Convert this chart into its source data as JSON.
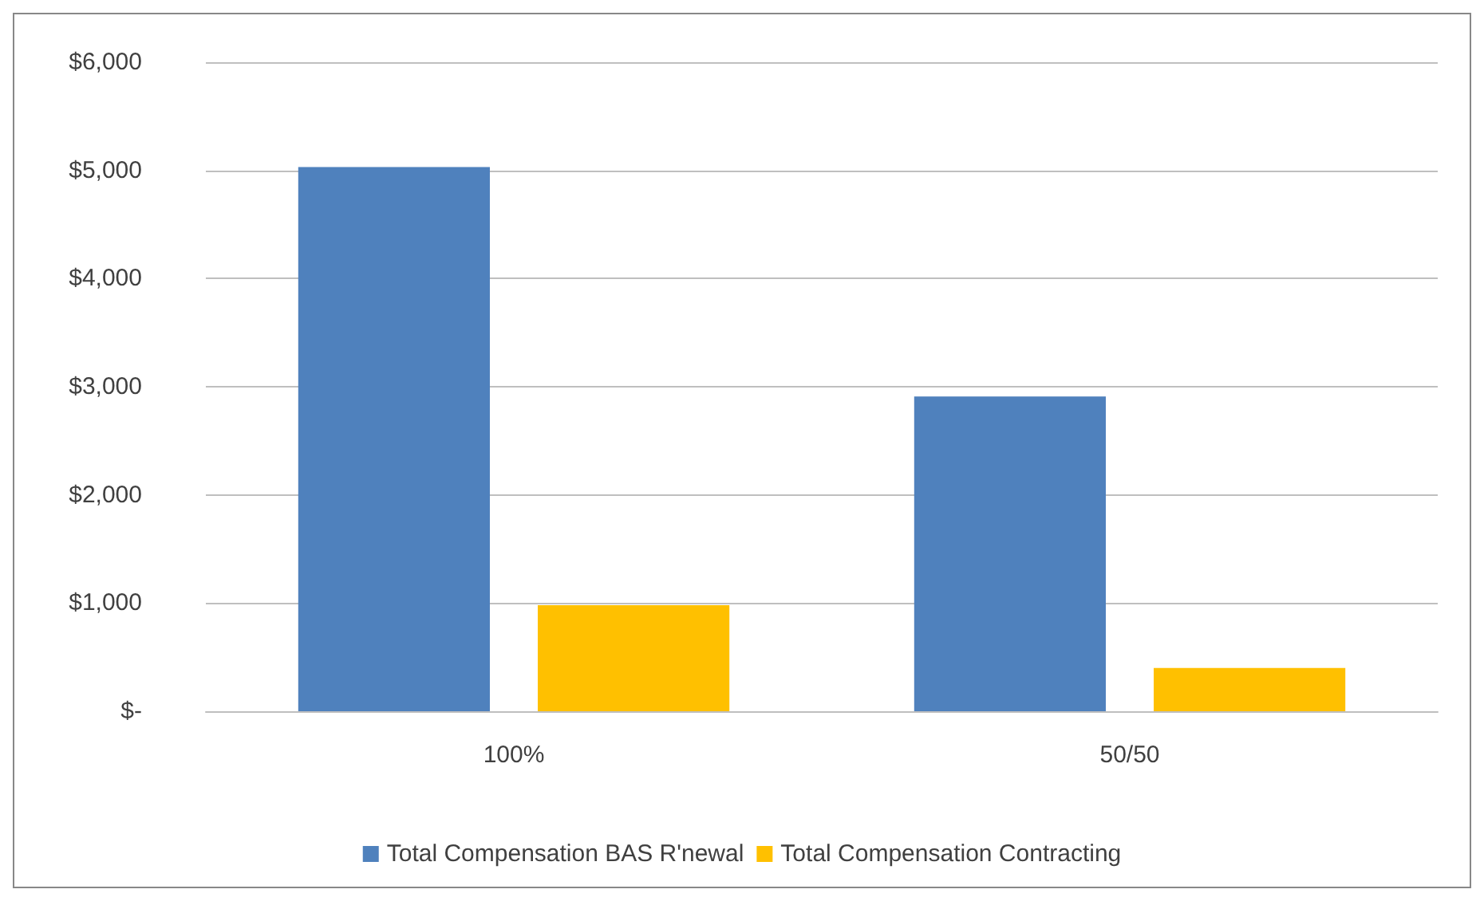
{
  "chart_data": {
    "type": "bar",
    "categories": [
      "100%",
      "50/50"
    ],
    "series": [
      {
        "name": "Total Compensation BAS R'newal",
        "color": "#4f81bd",
        "values": [
          5030,
          2910
        ]
      },
      {
        "name": "Total Compensation Contracting",
        "color": "#ffc000",
        "values": [
          980,
          400
        ]
      }
    ],
    "ylim": [
      0,
      6000
    ],
    "yticks": [
      {
        "value": 0,
        "label": "$-"
      },
      {
        "value": 1000,
        "label": "$1,000"
      },
      {
        "value": 2000,
        "label": "$2,000"
      },
      {
        "value": 3000,
        "label": "$3,000"
      },
      {
        "value": 4000,
        "label": "$4,000"
      },
      {
        "value": 5000,
        "label": "$5,000"
      },
      {
        "value": 6000,
        "label": "$6,000"
      }
    ],
    "grid": "y",
    "legend": "bottom"
  }
}
